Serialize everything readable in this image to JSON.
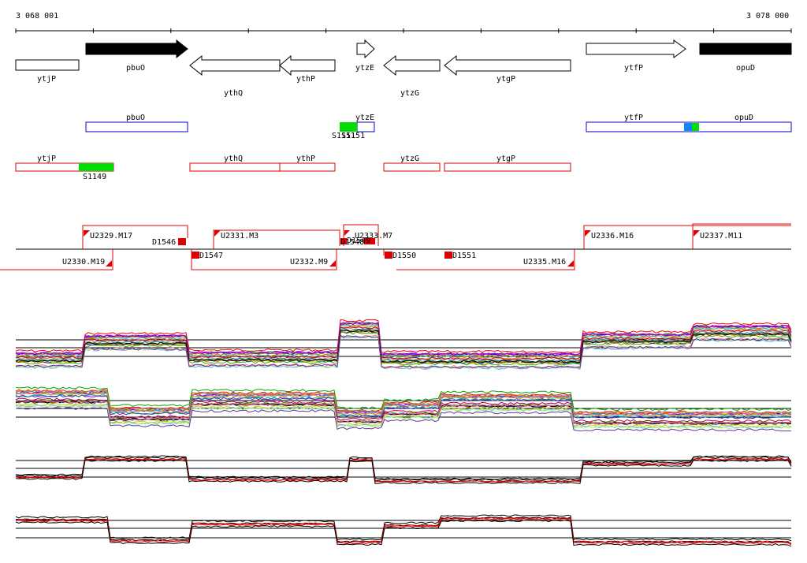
{
  "ruler": {
    "start_label": "3 068 001",
    "end_label": "3 078 000"
  },
  "genes": [
    {
      "name": "ytjP",
      "strand": "-",
      "filled": false,
      "label_row": 1
    },
    {
      "name": "pbuO",
      "strand": "+",
      "filled": true,
      "label_row": 1
    },
    {
      "name": "ythQ",
      "strand": "-",
      "filled": false,
      "label_row": 2
    },
    {
      "name": "ythP",
      "strand": "-",
      "filled": false,
      "label_row": 1
    },
    {
      "name": "ytzE",
      "strand": "+",
      "filled": false,
      "label_row": 1
    },
    {
      "name": "ytzG",
      "strand": "-",
      "filled": false,
      "label_row": 2
    },
    {
      "name": "ytgP",
      "strand": "-",
      "filled": false,
      "label_row": 1
    },
    {
      "name": "ytfP",
      "strand": "+",
      "filled": false,
      "label_row": 1
    },
    {
      "name": "opuD",
      "strand": "+",
      "filled": true,
      "label_row": 1
    }
  ],
  "forward_boxes": [
    {
      "label": "pbuO"
    },
    {
      "label": "ytzE"
    },
    {
      "label": "ytfP"
    },
    {
      "label": "opuD"
    }
  ],
  "forward_segments": [
    {
      "label": "S1151",
      "color": "#00dd00"
    }
  ],
  "reverse_boxes": [
    {
      "label": "ytjP"
    },
    {
      "label": "ythQ"
    },
    {
      "label": "ythP"
    },
    {
      "label": "ytzG"
    },
    {
      "label": "ytgP"
    }
  ],
  "reverse_segments": [
    {
      "label": "S1149",
      "color": "#00dd00"
    }
  ],
  "upper_features": [
    {
      "label": "U2329.M17"
    },
    {
      "label": "U2331.M3"
    },
    {
      "label": "U2333.M7"
    },
    {
      "label": "U2336.M16"
    },
    {
      "label": "U2337.M11"
    }
  ],
  "upper_d_features": [
    {
      "label": "D1546"
    },
    {
      "label": "D1548"
    },
    {
      "label": "D1549"
    }
  ],
  "lower_features": [
    {
      "label": "U2330.M19"
    },
    {
      "label": "U2332.M9"
    },
    {
      "label": "U2335.M16"
    }
  ],
  "lower_d_features": [
    {
      "label": "D1547"
    },
    {
      "label": "D1550"
    },
    {
      "label": "D1551"
    }
  ],
  "colors": {
    "feature_red": "#dd0000",
    "box_blue": "#0000cc",
    "segment_green": "#00dd00",
    "segment_blue": "#1188ee"
  }
}
